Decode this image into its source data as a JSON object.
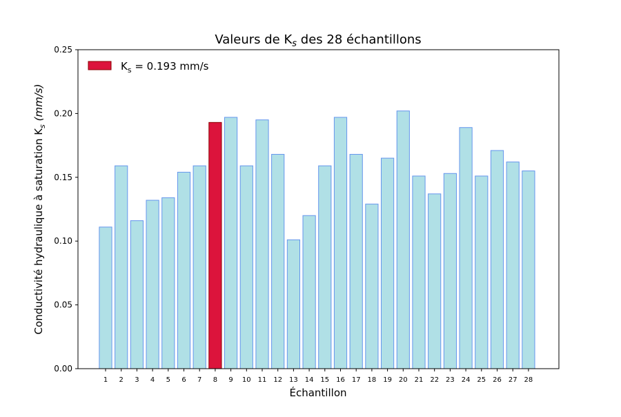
{
  "chart_data": {
    "type": "bar",
    "title": "Valeurs de K",
    "title_subscript": "s",
    "title_suffix": " des 28 échantillons",
    "xlabel": "Échantillon",
    "ylabel": "Conductivité hydraulique à saturation K",
    "ylabel_subscript": "s",
    "ylabel_suffix": " (mm/s)",
    "ylim": [
      0,
      0.25
    ],
    "yticks": [
      "0.00",
      "0.05",
      "0.10",
      "0.15",
      "0.20",
      "0.25"
    ],
    "categories": [
      "1",
      "2",
      "3",
      "4",
      "5",
      "6",
      "7",
      "8",
      "9",
      "10",
      "11",
      "12",
      "13",
      "14",
      "15",
      "16",
      "17",
      "18",
      "19",
      "20",
      "21",
      "22",
      "23",
      "24",
      "25",
      "26",
      "27",
      "28"
    ],
    "values": [
      0.111,
      0.159,
      0.116,
      0.132,
      0.134,
      0.154,
      0.159,
      0.193,
      0.197,
      0.159,
      0.195,
      0.168,
      0.101,
      0.12,
      0.159,
      0.197,
      0.168,
      0.129,
      0.165,
      0.202,
      0.151,
      0.137,
      0.153,
      0.189,
      0.151,
      0.171,
      0.162,
      0.155
    ],
    "highlight_index": 7,
    "legend": {
      "label_prefix": "K",
      "label_subscript": "s",
      "label_suffix": " = 0.193 mm/s",
      "placement": "top-left"
    },
    "colors": {
      "bar_fill": "#b0e0e6",
      "bar_edge": "#6495ed",
      "highlight_fill": "#dc143c",
      "highlight_edge": "#8b0000",
      "axes": "#000000"
    }
  }
}
